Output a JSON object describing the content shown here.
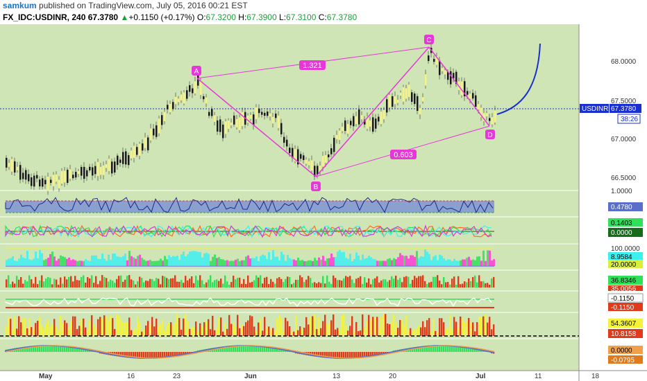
{
  "header": {
    "user": "samkum",
    "published_text": " published on TradingView.com, July 05, 2016 00:21 EST"
  },
  "symbol_bar": {
    "symbol": "FX_IDC:USDINR, 240",
    "last": "67.3780",
    "arrow": "▲",
    "change": "+0.1150 (+0.17%)",
    "open_label": "O:",
    "open": "67.3200",
    "high_label": "H:",
    "high": "67.3900",
    "low_label": "L:",
    "low": "67.3100",
    "close_label": "C:",
    "close": "67.3780"
  },
  "colors": {
    "background": "#cfe5b6",
    "pattern": "#e637d9",
    "projection": "#1a2fd1",
    "price_tag": "#1a2fd1"
  },
  "pattern": {
    "points": [
      {
        "label": "A",
        "date": "2016-05-25",
        "price": 67.76
      },
      {
        "label": "B",
        "date": "2016-06-10",
        "price": 66.43
      },
      {
        "label": "C",
        "date": "2016-06-24",
        "price": 68.15
      },
      {
        "label": "D",
        "date": "2016-07-04",
        "price": 67.2
      }
    ],
    "ratio_upper": "1.321",
    "ratio_lower": "0.603"
  },
  "price_axis": {
    "ticks": [
      "68.0000",
      "67.5000",
      "67.0000",
      "66.5000"
    ],
    "symbol_tag": "USDINR",
    "price_tag": "67.3780",
    "countdown": "38:26"
  },
  "indicator_values": {
    "p1": {
      "top": "1.0000",
      "value": "0.4780"
    },
    "p2": {
      "v1": "0.1403",
      "v2": "0.0000"
    },
    "p3": {
      "v1": "100.0000",
      "v2": "8.9584",
      "v3": "20.0000"
    },
    "p4": {
      "v1": "36.8346",
      "v2": "35.0056"
    },
    "p5": {
      "v1": "-0.1150",
      "v2": "-0.1150"
    },
    "p6": {
      "v1": "54.3607",
      "v2": "10.8158"
    },
    "p7": {
      "v1": "0.0000",
      "v2": "-0.0795"
    }
  },
  "time_axis": {
    "labels": [
      "May",
      "16",
      "23",
      "Jun",
      "13",
      "20",
      "Jul",
      "11",
      "18"
    ]
  }
}
